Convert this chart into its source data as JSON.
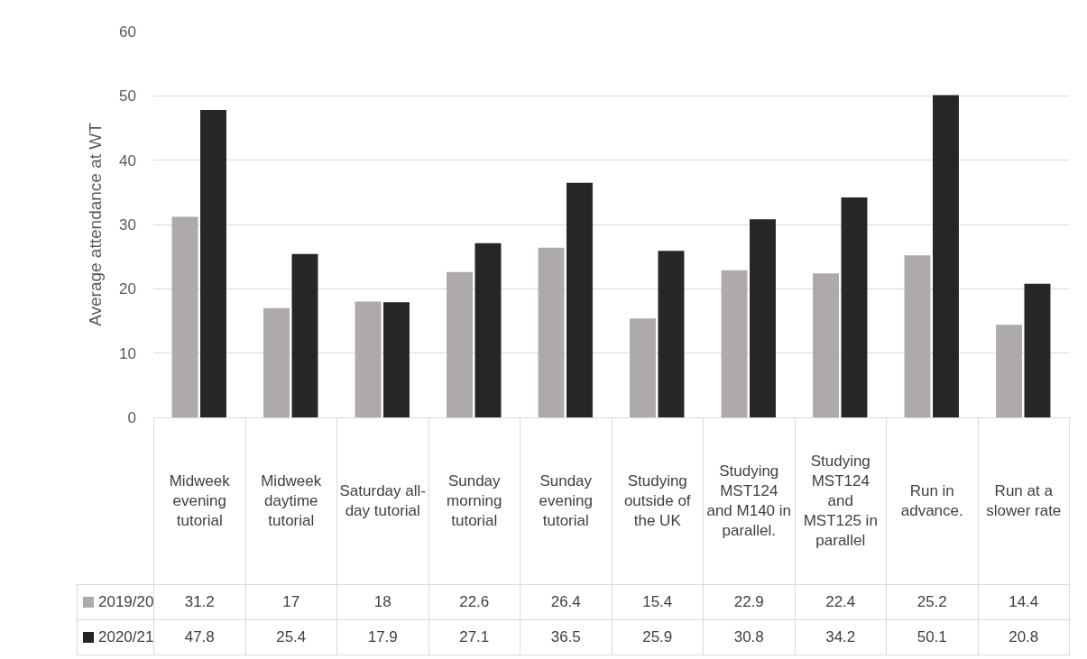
{
  "chart_data": {
    "type": "bar",
    "ylabel": "Average attendance at WT",
    "categories": [
      "Midweek evening tutorial",
      "Midweek daytime tutorial",
      "Saturday all-day tutorial",
      "Sunday morning tutorial",
      "Sunday evening tutorial",
      "Studying outside of the UK",
      "Studying MST124 and M140 in parallel.",
      "Studying MST124 and MST125 in parallel",
      "Run in advance.",
      "Run at a slower rate"
    ],
    "series": [
      {
        "name": "2019/20",
        "color": "#aeaaaa",
        "values": [
          31.2,
          17,
          18,
          22.6,
          26.4,
          15.4,
          22.9,
          22.4,
          25.2,
          14.4
        ]
      },
      {
        "name": "2020/21",
        "color": "#262626",
        "values": [
          47.8,
          25.4,
          17.9,
          27.1,
          36.5,
          25.9,
          30.8,
          34.2,
          50.1,
          20.8
        ]
      }
    ],
    "ylim": [
      0,
      60
    ],
    "yticks": [
      0,
      10,
      20,
      30,
      40,
      50,
      60
    ],
    "grid": "y",
    "legend": "bottom left",
    "data_labels": true
  }
}
